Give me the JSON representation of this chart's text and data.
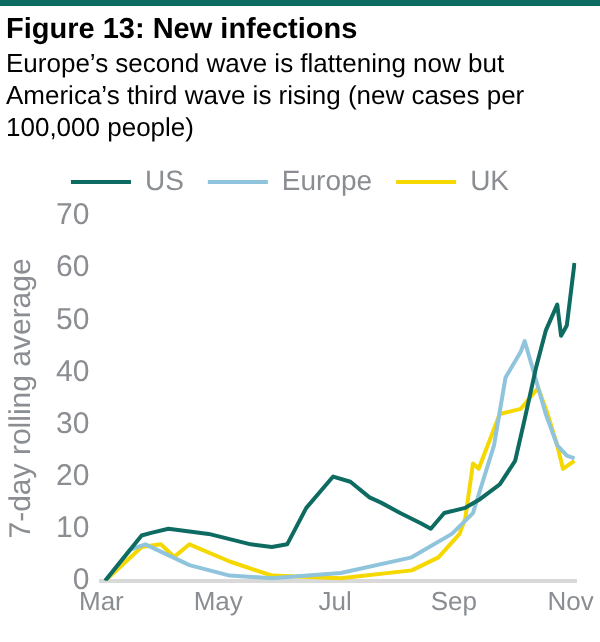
{
  "chart_data": {
    "type": "line",
    "title": "Figure 13: New infections",
    "subtitle": "Europe’s second wave is flattening now but America’s third wave is rising (new cases per 100,000 people)",
    "ylabel": "7-day rolling average",
    "xlim": [
      "--03-15",
      "--11-18"
    ],
    "xticks": [
      {
        "value": "--03-15",
        "label": "Mar"
      },
      {
        "value": "--05-15",
        "label": "May"
      },
      {
        "value": "--07-15",
        "label": "Jul"
      },
      {
        "value": "--09-15",
        "label": "Sep"
      },
      {
        "value": "--11-15",
        "label": "Nov"
      }
    ],
    "ylim": [
      0,
      70
    ],
    "yticks": [
      0,
      10,
      20,
      30,
      40,
      50,
      60,
      70
    ],
    "grid": false,
    "legend": "top",
    "line_style": "solid",
    "marker": "none",
    "series": [
      {
        "name": "US",
        "color": "#0e6b62",
        "x": [
          "--03-17",
          "--04-05",
          "--04-10",
          "--04-19",
          "--05-10",
          "--06-01",
          "--06-12",
          "--06-20",
          "--06-30",
          "--07-14",
          "--07-23",
          "--08-02",
          "--08-08",
          "--08-18",
          "--08-29",
          "--09-03",
          "--09-10",
          "--09-21",
          "--09-28",
          "--10-09",
          "--10-17",
          "--10-22",
          "--10-28",
          "--11-02",
          "--11-08",
          "--11-10",
          "--11-13",
          "--11-17"
        ],
        "values": [
          0,
          8.7,
          9.2,
          10,
          9,
          7,
          6.5,
          7,
          14,
          20,
          19,
          16,
          15,
          13,
          11,
          10,
          13,
          14,
          15.5,
          18.5,
          23,
          31,
          41,
          48,
          53,
          47,
          49,
          61
        ]
      },
      {
        "name": "Europe",
        "color": "#8fc4dc",
        "x": [
          "--03-17",
          "--03-30",
          "--04-07",
          "--04-30",
          "--05-21",
          "--06-12",
          "--07-18",
          "--08-24",
          "--09-14",
          "--09-25",
          "--10-06",
          "--10-12",
          "--10-20",
          "--10-22",
          "--10-26",
          "--11-02",
          "--11-08",
          "--11-13",
          "--11-17"
        ],
        "values": [
          0,
          6,
          7,
          3,
          1,
          0.5,
          1.5,
          4.5,
          9,
          13,
          26,
          39,
          44,
          46,
          41,
          32,
          26,
          24,
          23.5
        ]
      },
      {
        "name": "UK",
        "color": "#f5d800",
        "x": [
          "--03-17",
          "--04-05",
          "--04-15",
          "--04-22",
          "--04-30",
          "--05-21",
          "--06-12",
          "--07-18",
          "--08-24",
          "--09-07",
          "--09-18",
          "--09-21",
          "--09-25",
          "--09-28",
          "--10-09",
          "--10-20",
          "--10-29",
          "--11-03",
          "--11-08",
          "--11-11",
          "--11-17"
        ],
        "values": [
          0,
          6.5,
          7,
          4.6,
          7,
          3.7,
          1,
          0.5,
          2,
          4.5,
          9,
          12,
          22.5,
          21.5,
          32,
          33,
          37,
          32,
          26,
          21.5,
          23
        ]
      }
    ]
  }
}
